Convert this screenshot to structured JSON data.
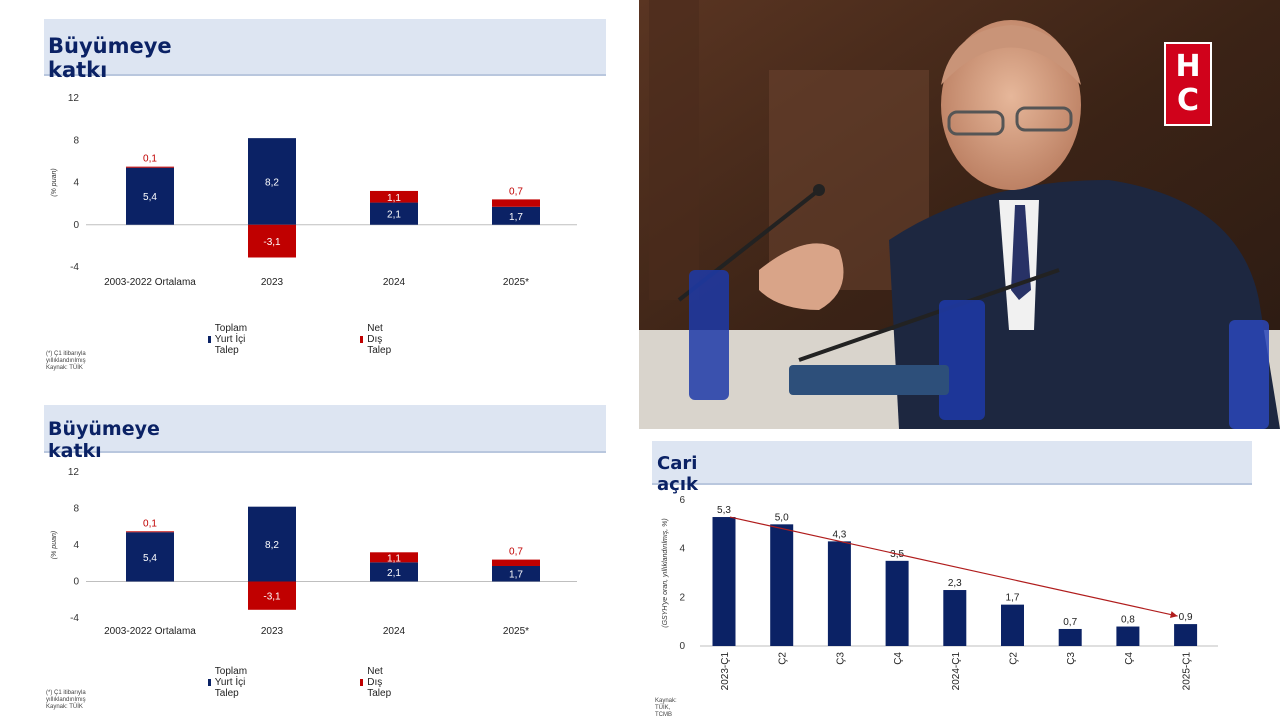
{
  "panels": [
    {
      "id": "top",
      "title": "Büyümeye katkı",
      "ylabel": "(% puan)",
      "yticks": [
        12,
        8,
        4,
        0,
        -4
      ],
      "ylim": [
        -4,
        12
      ],
      "legend": [
        {
          "name": "Toplam Yurt İçi Talep",
          "color": "#0b2265"
        },
        {
          "name": "Net Dış Talep",
          "color": "#c00000"
        }
      ],
      "footnote": [
        "(*) Ç1 itibarıyla yıllıklandırılmış",
        "Kaynak: TÜİK"
      ]
    },
    {
      "id": "bottom",
      "title": "Büyümeye katkı",
      "ylabel": "(% puan)",
      "yticks": [
        12,
        8,
        4,
        0,
        -4
      ],
      "ylim": [
        -4,
        12
      ],
      "legend": [
        {
          "name": "Toplam Yurt İçi Talep",
          "color": "#0b2265"
        },
        {
          "name": "Net Dış Talep",
          "color": "#c00000"
        }
      ],
      "footnote": [
        "(*) Ç1 itibarıyla yıllıklandırılmış",
        "Kaynak: TÜİK"
      ]
    },
    {
      "id": "cari",
      "title": "Cari açık",
      "ylabel": "(GSYH'ye oran, yıllıklandırılmış, %)",
      "yticks": [
        6,
        4,
        2,
        0
      ],
      "ylim": [
        0,
        6
      ],
      "footnote": [
        "Kaynak: TÜİK, TCMB"
      ]
    }
  ],
  "chart_data": [
    {
      "type": "bar",
      "title": "Büyümeye katkı",
      "ylabel": "(% puan)",
      "ylim": [
        -4,
        12
      ],
      "categories": [
        "2003-2022 Ortalama",
        "2023",
        "2024",
        "2025*"
      ],
      "series": [
        {
          "name": "Toplam Yurt İçi Talep",
          "values": [
            5.4,
            8.2,
            2.1,
            1.7
          ],
          "labels": [
            "5,4",
            "8,2",
            "2,1",
            "1,7"
          ],
          "color": "#0b2265"
        },
        {
          "name": "Net Dış Talep",
          "values": [
            0.1,
            -3.1,
            1.1,
            0.7
          ],
          "labels": [
            "0,1",
            "-3,1",
            "1,1",
            "0,7"
          ],
          "color": "#c00000"
        }
      ],
      "legend": "bottom"
    },
    {
      "type": "bar",
      "title": "Büyümeye katkı",
      "ylabel": "(% puan)",
      "ylim": [
        -4,
        12
      ],
      "categories": [
        "2003-2022 Ortalama",
        "2023",
        "2024",
        "2025*"
      ],
      "series": [
        {
          "name": "Toplam Yurt İçi Talep",
          "values": [
            5.4,
            8.2,
            2.1,
            1.7
          ],
          "labels": [
            "5,4",
            "8,2",
            "2,1",
            "1,7"
          ],
          "color": "#0b2265"
        },
        {
          "name": "Net Dış Talep",
          "values": [
            0.1,
            -3.1,
            1.1,
            0.7
          ],
          "labels": [
            "0,1",
            "-3,1",
            "1,1",
            "0,7"
          ],
          "color": "#c00000"
        }
      ],
      "legend": "bottom"
    },
    {
      "type": "bar",
      "title": "Cari açık",
      "ylabel": "(GSYH'ye oran, yıllıklandırılmış, %)",
      "ylim": [
        0,
        6
      ],
      "categories": [
        "2023-Ç1",
        "Ç2",
        "Ç3",
        "Ç4",
        "2024-Ç1",
        "Ç2",
        "Ç3",
        "Ç4",
        "2025-Ç1"
      ],
      "values": [
        5.3,
        5.0,
        4.3,
        3.5,
        2.3,
        1.7,
        0.7,
        0.8,
        0.9
      ],
      "labels": [
        "5,3",
        "5,0",
        "4,3",
        "3,5",
        "2,3",
        "1,7",
        "0,7",
        "0,8",
        "0,9"
      ],
      "color": "#0b2265",
      "trend_arrow": {
        "from": 5.3,
        "to": 0.9,
        "color": "#b01c1c"
      }
    }
  ],
  "photo": {
    "logo_letters": [
      "H",
      "C"
    ]
  }
}
